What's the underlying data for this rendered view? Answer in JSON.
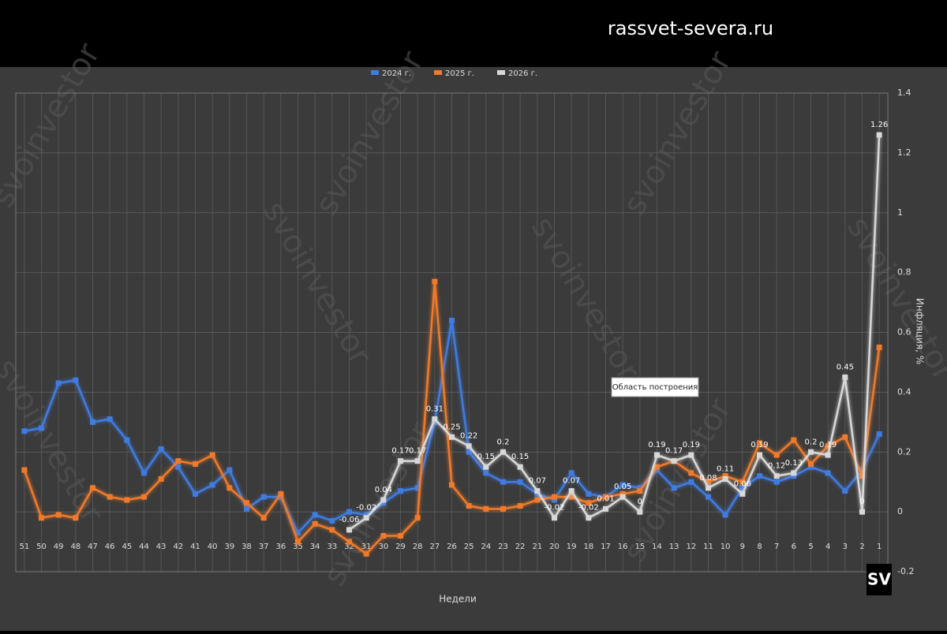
{
  "header": {
    "site": "rassvet-severa.ru"
  },
  "chart_data": {
    "type": "line",
    "xlabel": "Недели",
    "ylabel": "Инфляция, %",
    "annotation": "Область построения",
    "watermark": "svoinvestor",
    "logo": "SV",
    "categories": [
      "51",
      "50",
      "49",
      "48",
      "47",
      "46",
      "45",
      "44",
      "43",
      "42",
      "41",
      "40",
      "39",
      "38",
      "37",
      "36",
      "35",
      "34",
      "33",
      "32",
      "31",
      "30",
      "29",
      "28",
      "27",
      "26",
      "25",
      "24",
      "23",
      "22",
      "21",
      "20",
      "19",
      "18",
      "17",
      "16",
      "15",
      "14",
      "13",
      "12",
      "11",
      "10",
      "9",
      "8",
      "7",
      "6",
      "5",
      "4",
      "3",
      "2",
      "1"
    ],
    "series": [
      {
        "name": "2024 г.",
        "color": "#3f7be0",
        "values": [
          0.27,
          0.28,
          0.43,
          0.44,
          0.3,
          0.31,
          0.24,
          0.13,
          0.21,
          0.15,
          0.06,
          0.09,
          0.14,
          0.01,
          0.05,
          0.05,
          -0.07,
          -0.01,
          -0.03,
          0,
          -0.01,
          0.03,
          0.07,
          0.08,
          0.3,
          0.64,
          0.2,
          0.13,
          0.1,
          0.1,
          0.06,
          0.04,
          0.13,
          0.06,
          0.05,
          0.09,
          0.08,
          0.14,
          0.08,
          0.1,
          0.05,
          -0.01,
          0.08,
          0.12,
          0.1,
          0.12,
          0.15,
          0.13,
          0.07,
          0.14,
          0.26
        ]
      },
      {
        "name": "2025 г.",
        "color": "#f07a2a",
        "values": [
          0.14,
          -0.02,
          -0.01,
          -0.02,
          0.08,
          0.05,
          0.04,
          0.05,
          0.11,
          0.17,
          0.16,
          0.19,
          0.08,
          0.03,
          -0.02,
          0.06,
          -0.1,
          -0.04,
          -0.06,
          -0.1,
          -0.14,
          -0.08,
          -0.08,
          -0.02,
          0.77,
          0.09,
          0.02,
          0.01,
          0.01,
          0.02,
          0.04,
          0.05,
          0.05,
          0.03,
          0.05,
          0.06,
          0.07,
          0.15,
          0.17,
          0.13,
          0.1,
          0.12,
          0.1,
          0.23,
          0.19,
          0.24,
          0.16,
          0.22,
          0.25,
          0.12,
          0.55
        ]
      },
      {
        "name": "2026 г.",
        "color": "#d8d8d8",
        "labels": true,
        "values": [
          null,
          null,
          null,
          null,
          null,
          null,
          null,
          null,
          null,
          null,
          null,
          null,
          null,
          null,
          null,
          null,
          null,
          null,
          null,
          -0.06,
          -0.02,
          0.04,
          0.17,
          0.17,
          0.31,
          0.25,
          0.22,
          0.15,
          0.2,
          0.15,
          0.07,
          -0.02,
          0.07,
          -0.02,
          0.01,
          0.05,
          0,
          0.19,
          0.17,
          0.19,
          0.08,
          0.11,
          0.06,
          0.19,
          0.12,
          0.13,
          0.2,
          0.19,
          0.45,
          0,
          1.26
        ]
      }
    ],
    "ylim": [
      -0.2,
      1.4
    ],
    "yticks": [
      -0.2,
      0,
      0.2,
      0.4,
      0.6,
      0.8,
      1,
      1.2,
      1.4
    ],
    "grid": true,
    "legend": "top"
  }
}
